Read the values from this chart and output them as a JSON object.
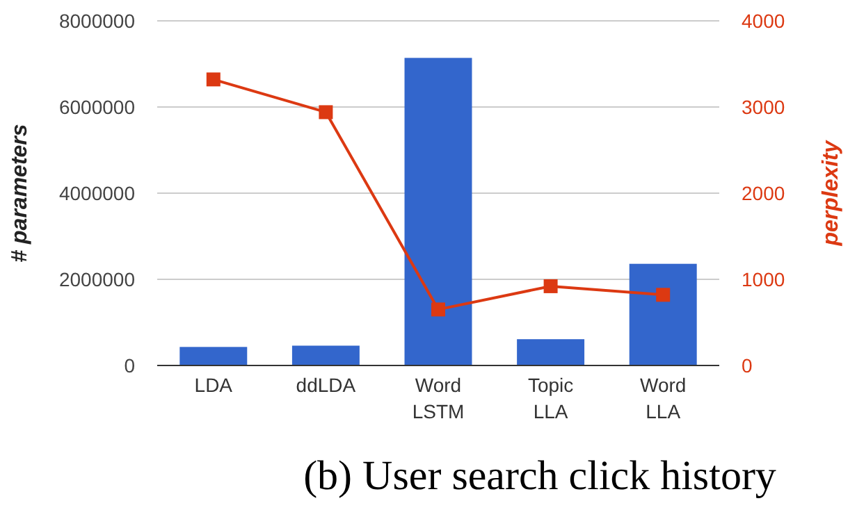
{
  "chart_data": {
    "type": "bar",
    "categories": [
      "LDA",
      "ddLDA",
      "Word\nLSTM",
      "Topic\nLLA",
      "Word\nLLA"
    ],
    "series": [
      {
        "color": "#3366cc",
        "values": [
          430000,
          460000,
          7140000,
          610000,
          2360000
        ]
      },
      {
        "type": "line",
        "axis": "y2",
        "color": "#dc3912",
        "marker": "square",
        "values": [
          3320,
          2940,
          650,
          920,
          820
        ]
      }
    ],
    "ylabel": "# parameters",
    "y2label": "perplexity",
    "ylim": [
      0,
      8000000
    ],
    "yticks": [
      0,
      2000000,
      4000000,
      6000000,
      8000000
    ],
    "y2lim": [
      0,
      4000
    ],
    "y2ticks": [
      0,
      1000,
      2000,
      3000,
      4000
    ],
    "grid": "y",
    "annotations": [
      "(b) User search click history"
    ]
  }
}
